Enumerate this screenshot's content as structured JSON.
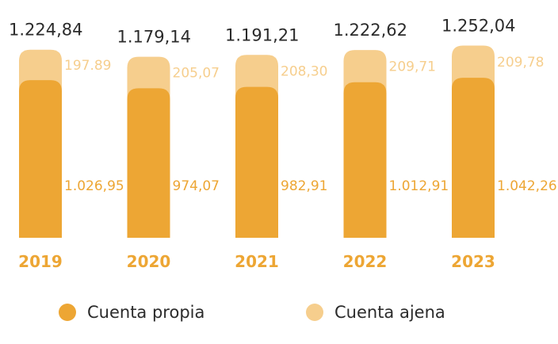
{
  "chart_data": {
    "type": "bar",
    "stacked": true,
    "categories": [
      "2019",
      "2020",
      "2021",
      "2022",
      "2023"
    ],
    "series": [
      {
        "name": "Cuenta propia",
        "color": "#EDA634",
        "values": [
          1026.95,
          974.07,
          982.91,
          1012.91,
          1042.26
        ],
        "labels": [
          "1.026,95",
          "974,07",
          "982,91",
          "1.012,91",
          "1.042,26"
        ]
      },
      {
        "name": "Cuenta ajena",
        "color": "#F6CE8D",
        "values": [
          197.89,
          205.07,
          208.3,
          209.71,
          209.78
        ],
        "labels": [
          "197.89",
          "205,07",
          "208,30",
          "209,71",
          "209,78"
        ]
      }
    ],
    "totals": [
      1224.84,
      1179.14,
      1191.21,
      1222.62,
      1252.04
    ],
    "total_labels": [
      "1.224,84",
      "1.179,14",
      "1.191,21",
      "1.222,62",
      "1.252,04"
    ],
    "legend_position": "bottom",
    "grid": false,
    "title": "",
    "xlabel": "",
    "ylabel": ""
  },
  "colors": {
    "primary": "#EDA634",
    "secondary": "#F6CE8D",
    "year_text": "#EDA634",
    "total_text": "#2b2b2b"
  }
}
